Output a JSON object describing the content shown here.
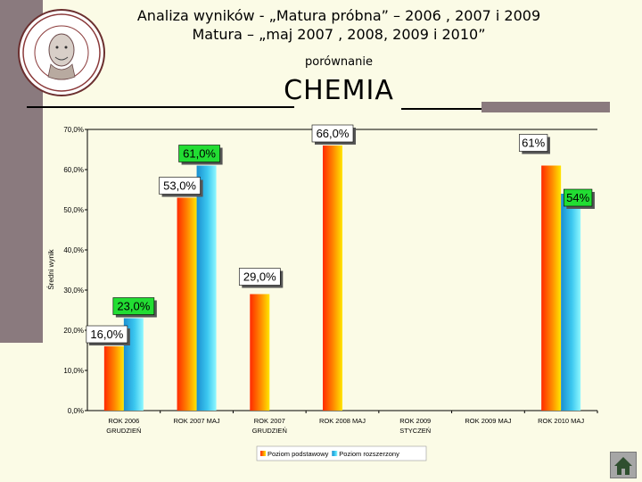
{
  "header": {
    "line1": "Analiza wyników  - „Matura próbna” – 2006 , 2007 i 2009",
    "line2": "Matura – „maj 2007 , 2008, 2009 i 2010”",
    "line3": "porównanie",
    "subject": "CHEMIA"
  },
  "colors": {
    "series1": "#ff3a00",
    "series1_light": "#ffd000",
    "series2": "#1a9fd8",
    "series2_light": "#7ff0ff",
    "label_box": "#22dd33",
    "sidebar": "#8a7a7e",
    "background": "#fbfbe6"
  },
  "icons": [
    "school-logo-icon",
    "home-icon"
  ],
  "chart_data": {
    "type": "bar",
    "ylabel": "Średni wynik",
    "ylim": [
      0,
      70
    ],
    "yticks": [
      "0,0%",
      "10,0%",
      "20,0%",
      "30,0%",
      "40,0%",
      "50,0%",
      "60,0%",
      "70,0%"
    ],
    "grid": false,
    "legend_position": "bottom",
    "categories": [
      [
        "ROK 2006",
        "GRUDZIEŃ"
      ],
      [
        "ROK 2007 MAJ"
      ],
      [
        "ROK 2007",
        "GRUDZIEŃ"
      ],
      [
        "ROK 2008 MAJ"
      ],
      [
        "ROK 2009",
        "STYCZEŃ"
      ],
      [
        "ROK 2009 MAJ"
      ],
      [
        "ROK 2010 MAJ"
      ]
    ],
    "series": [
      {
        "name": "Poziom podstawowy",
        "values": [
          16,
          53,
          29,
          66,
          null,
          null,
          61
        ],
        "labels": [
          "16,0%",
          "53,0%",
          "29,0%",
          "66,0%",
          "",
          "",
          "61%"
        ]
      },
      {
        "name": "Poziom rozszerzony",
        "values": [
          23,
          61,
          null,
          null,
          null,
          null,
          54
        ],
        "labels": [
          "23,0%",
          "61,0%",
          "",
          "",
          "",
          "",
          "54%"
        ]
      }
    ]
  }
}
